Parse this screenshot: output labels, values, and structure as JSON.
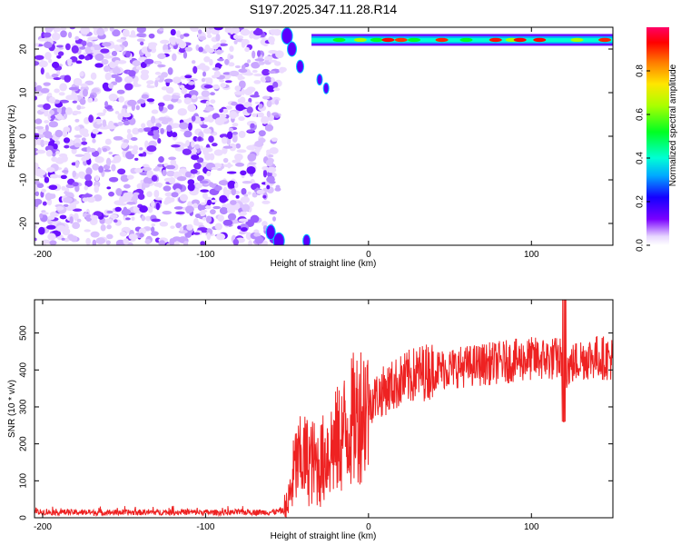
{
  "title": "S197.2025.347.11.28.R14",
  "spectrogram": {
    "chart_data": {
      "type": "heatmap",
      "xlabel": "Height of straight line (km)",
      "ylabel": "Frequency (Hz)",
      "xlim": [
        -205,
        150
      ],
      "ylim": [
        -25,
        25
      ],
      "xticks": [
        -200,
        -100,
        0,
        100
      ],
      "yticks": [
        -20,
        -10,
        0,
        10,
        20
      ],
      "colorbar": {
        "label": "Normalized spectral amplitude",
        "range": [
          0,
          1
        ],
        "ticks": [
          "0.0",
          "0.2",
          "0.4",
          "0.6",
          "0.8"
        ],
        "tick_values": [
          0,
          0.2,
          0.4,
          0.6,
          0.8
        ]
      },
      "features": [
        {
          "description": "scattered noise",
          "x_range": [
            -205,
            -58
          ],
          "y_range": [
            -25,
            25
          ],
          "amplitude": [
            0.02,
            0.2
          ]
        },
        {
          "description": "signal band",
          "x_range": [
            -35,
            150
          ],
          "y_center": 22,
          "amplitude": [
            0.2,
            0.9
          ]
        }
      ]
    }
  },
  "snr": {
    "chart_data": {
      "type": "line",
      "xlabel": "Height of straight line (km)",
      "ylabel": "SNR (10 * v/v)",
      "xlim": [
        -205,
        150
      ],
      "ylim": [
        0,
        590
      ],
      "xticks": [
        -200,
        -100,
        0,
        100
      ],
      "yticks": [
        0,
        100,
        200,
        300,
        400,
        500
      ],
      "color": "#ee2222",
      "series": [
        {
          "x": [
            -205,
            -190,
            -170,
            -150,
            -130,
            -110,
            -90,
            -70,
            -60,
            -50,
            -45,
            -40,
            -35,
            -30,
            -25,
            -20,
            -15,
            -10,
            -5,
            0,
            5,
            10,
            20,
            30,
            40,
            50,
            60,
            70,
            80,
            90,
            100,
            110,
            118,
            120,
            130,
            140,
            150
          ],
          "y": [
            15,
            15,
            14,
            14,
            15,
            15,
            14,
            15,
            15,
            20,
            140,
            160,
            150,
            140,
            180,
            200,
            230,
            260,
            290,
            310,
            330,
            345,
            370,
            390,
            400,
            405,
            410,
            415,
            420,
            425,
            430,
            430,
            430,
            400,
            430,
            435,
            430
          ]
        }
      ]
    }
  }
}
